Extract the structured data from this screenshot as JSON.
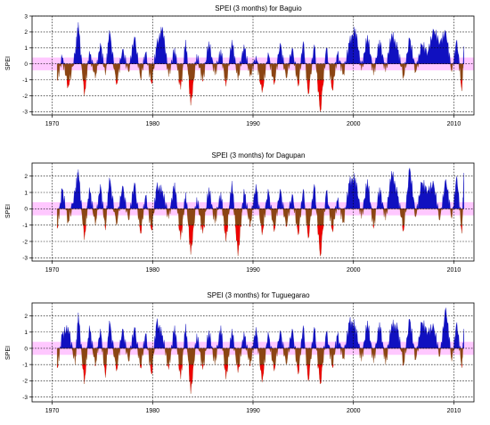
{
  "chart_data": [
    {
      "type": "area",
      "title": "SPEI (3 months) for Baguio",
      "xlabel": "",
      "ylabel": "SPEI",
      "xlim": [
        1968,
        2012
      ],
      "ylim": [
        -3.2,
        3.0
      ],
      "yticks": [
        -3,
        -2,
        -1,
        0,
        1,
        2,
        3
      ],
      "xticks": [
        1970,
        1980,
        1990,
        2000,
        2010
      ],
      "xgrid": [
        1970,
        1980,
        1990,
        2000,
        2010
      ],
      "grid": true,
      "threshold": 1.0,
      "colors": {
        "positive": "#1010c0",
        "negative": "#8b4513",
        "severe": "#ee0000",
        "band": "#ffc8ff",
        "grid": "#000000"
      },
      "series": [
        {
          "x": [
            1970.5,
            1971.0,
            1971.6,
            1972.3,
            1972.6,
            1973.2,
            1973.7,
            1974.3,
            1974.8,
            1975.3,
            1975.7,
            1976.4,
            1977.0,
            1977.6,
            1978.2,
            1978.8,
            1979.3,
            1979.9,
            1980.4,
            1981.0,
            1981.6,
            1982.2,
            1982.8,
            1983.3,
            1983.8,
            1984.4,
            1985.0,
            1985.6,
            1986.2,
            1986.8,
            1987.3,
            1987.9,
            1988.5,
            1989.1,
            1989.7,
            1990.3,
            1990.9,
            1991.5,
            1992.1,
            1992.7,
            1993.3,
            1993.9,
            1994.5,
            1995.0,
            1995.5,
            1996.1,
            1996.7,
            1997.3,
            1997.9,
            1998.4,
            1999.0,
            1999.6,
            2000.2,
            2000.8,
            2001.4,
            2002.0,
            2002.6,
            2003.2,
            2003.8,
            2004.4,
            2005.0,
            2005.6,
            2006.2,
            2006.8,
            2007.4,
            2008.0,
            2008.6,
            2009.2,
            2009.8,
            2010.3,
            2010.8,
            2011.0
          ],
          "y": [
            -1.0,
            0.4,
            -1.4,
            0.6,
            2.6,
            -2.0,
            0.8,
            -0.9,
            1.3,
            -0.7,
            2.1,
            -1.3,
            0.9,
            -0.5,
            1.7,
            -0.9,
            0.7,
            -1.2,
            1.1,
            2.3,
            -0.8,
            1.0,
            -1.6,
            1.5,
            -2.6,
            0.6,
            -1.1,
            1.4,
            -0.7,
            0.9,
            -1.4,
            1.5,
            -1.0,
            1.2,
            -0.8,
            0.5,
            -1.8,
            0.7,
            -1.3,
            1.3,
            -0.9,
            1.0,
            -1.4,
            1.4,
            -1.9,
            1.2,
            -3.0,
            1.0,
            -1.6,
            0.6,
            -0.6,
            1.3,
            2.2,
            -0.4,
            1.8,
            -0.7,
            1.5,
            -0.5,
            1.9,
            0.9,
            -0.8,
            1.6,
            -0.5,
            1.2,
            0.7,
            2.1,
            1.3,
            2.0,
            -0.5,
            1.5,
            -1.7,
            1.1
          ]
        }
      ]
    },
    {
      "type": "area",
      "title": "SPEI (3 months) for Dagupan",
      "xlabel": "",
      "ylabel": "SPEI",
      "xlim": [
        1968,
        2012
      ],
      "ylim": [
        -3.2,
        2.8
      ],
      "yticks": [
        -3,
        -2,
        -1,
        0,
        1,
        2
      ],
      "xticks": [
        1970,
        1980,
        1990,
        2000,
        2010
      ],
      "xgrid": [
        1970,
        1980,
        1990,
        2000,
        2010
      ],
      "grid": true,
      "threshold": 1.0,
      "colors": {
        "positive": "#1010c0",
        "negative": "#8b4513",
        "severe": "#ee0000",
        "band": "#ffc8ff",
        "grid": "#000000"
      },
      "series": [
        {
          "x": [
            1970.5,
            1971.0,
            1971.6,
            1972.3,
            1972.6,
            1973.2,
            1973.7,
            1974.3,
            1974.8,
            1975.3,
            1975.7,
            1976.4,
            1977.0,
            1977.6,
            1978.2,
            1978.8,
            1979.3,
            1979.9,
            1980.4,
            1981.0,
            1981.6,
            1982.2,
            1982.8,
            1983.3,
            1983.8,
            1984.4,
            1985.0,
            1985.6,
            1986.2,
            1986.8,
            1987.3,
            1987.9,
            1988.5,
            1989.1,
            1989.7,
            1990.3,
            1990.9,
            1991.5,
            1992.1,
            1992.7,
            1993.3,
            1993.9,
            1994.5,
            1995.0,
            1995.5,
            1996.1,
            1996.7,
            1997.3,
            1997.9,
            1998.4,
            1999.0,
            1999.6,
            2000.2,
            2000.8,
            2001.4,
            2002.0,
            2002.6,
            2003.2,
            2003.8,
            2004.4,
            2005.0,
            2005.6,
            2006.2,
            2006.8,
            2007.4,
            2008.0,
            2008.6,
            2009.2,
            2009.8,
            2010.3,
            2010.8,
            2011.0
          ],
          "y": [
            -1.2,
            1.2,
            -0.8,
            1.0,
            2.4,
            -1.9,
            1.3,
            -1.0,
            1.5,
            -1.3,
            1.9,
            -1.0,
            1.4,
            -0.7,
            1.6,
            -1.5,
            0.8,
            -1.3,
            1.3,
            1.1,
            -0.6,
            1.6,
            -1.9,
            1.0,
            -2.8,
            0.7,
            -1.5,
            1.3,
            -0.9,
            1.0,
            -2.0,
            1.7,
            -2.9,
            1.2,
            -1.1,
            1.5,
            -1.6,
            1.2,
            -1.4,
            1.2,
            -1.1,
            0.9,
            -1.6,
            1.2,
            -1.8,
            1.5,
            -2.9,
            1.1,
            -1.3,
            0.5,
            -0.8,
            1.6,
            1.9,
            -0.6,
            1.8,
            -1.2,
            1.3,
            -0.7,
            2.3,
            0.8,
            -1.3,
            2.5,
            -0.5,
            1.6,
            1.1,
            1.5,
            -0.7,
            1.8,
            -0.6,
            2.0,
            -1.5,
            2.2
          ]
        }
      ]
    },
    {
      "type": "area",
      "title": "SPEI (3 months) for Tuguegarao",
      "xlabel": "",
      "ylabel": "SPEI",
      "xlim": [
        1968,
        2012
      ],
      "ylim": [
        -3.3,
        2.8
      ],
      "yticks": [
        -3,
        -2,
        -1,
        0,
        1,
        2
      ],
      "xticks": [
        1970,
        1980,
        1990,
        2000,
        2010
      ],
      "xgrid": [
        1970,
        1980,
        1990,
        2000,
        2010
      ],
      "grid": true,
      "threshold": 1.0,
      "colors": {
        "positive": "#1010c0",
        "negative": "#8b4513",
        "severe": "#ee0000",
        "band": "#ffc8ff",
        "grid": "#000000"
      },
      "series": [
        {
          "x": [
            1970.5,
            1971.0,
            1971.6,
            1972.3,
            1972.6,
            1973.2,
            1973.7,
            1974.3,
            1974.8,
            1975.3,
            1975.7,
            1976.4,
            1977.0,
            1977.6,
            1978.2,
            1978.8,
            1979.3,
            1979.9,
            1980.4,
            1981.0,
            1981.6,
            1982.2,
            1982.8,
            1983.3,
            1983.8,
            1984.4,
            1985.0,
            1985.6,
            1986.2,
            1986.8,
            1987.3,
            1987.9,
            1988.5,
            1989.1,
            1989.7,
            1990.3,
            1990.9,
            1991.5,
            1992.1,
            1992.7,
            1993.3,
            1993.9,
            1994.5,
            1995.0,
            1995.5,
            1996.1,
            1996.7,
            1997.3,
            1997.9,
            1998.4,
            1999.0,
            1999.6,
            2000.2,
            2000.8,
            2001.4,
            2002.0,
            2002.6,
            2003.2,
            2003.8,
            2004.4,
            2005.0,
            2005.6,
            2006.2,
            2006.8,
            2007.4,
            2008.0,
            2008.6,
            2009.2,
            2009.8,
            2010.3,
            2010.8,
            2011.0
          ],
          "y": [
            -1.2,
            0.8,
            1.3,
            -1.0,
            2.2,
            -2.2,
            1.4,
            -1.1,
            1.2,
            -1.8,
            1.7,
            -1.4,
            1.2,
            -0.8,
            1.3,
            -1.2,
            0.9,
            -1.6,
            1.6,
            0.8,
            -1.3,
            1.4,
            -1.9,
            1.5,
            -2.8,
            0.9,
            -1.3,
            1.1,
            -1.0,
            1.4,
            -1.9,
            1.2,
            -1.5,
            1.0,
            -1.1,
            1.3,
            -2.1,
            1.0,
            -1.4,
            1.1,
            -1.0,
            1.2,
            -1.6,
            1.4,
            -2.0,
            1.3,
            -2.2,
            1.0,
            -1.1,
            0.8,
            -0.6,
            1.6,
            1.4,
            -0.8,
            1.7,
            -0.9,
            1.6,
            -1.0,
            1.5,
            1.2,
            -1.0,
            1.8,
            -0.7,
            1.6,
            1.0,
            1.3,
            -0.5,
            2.5,
            -0.8,
            1.6,
            -1.2,
            1.2
          ]
        }
      ]
    }
  ]
}
